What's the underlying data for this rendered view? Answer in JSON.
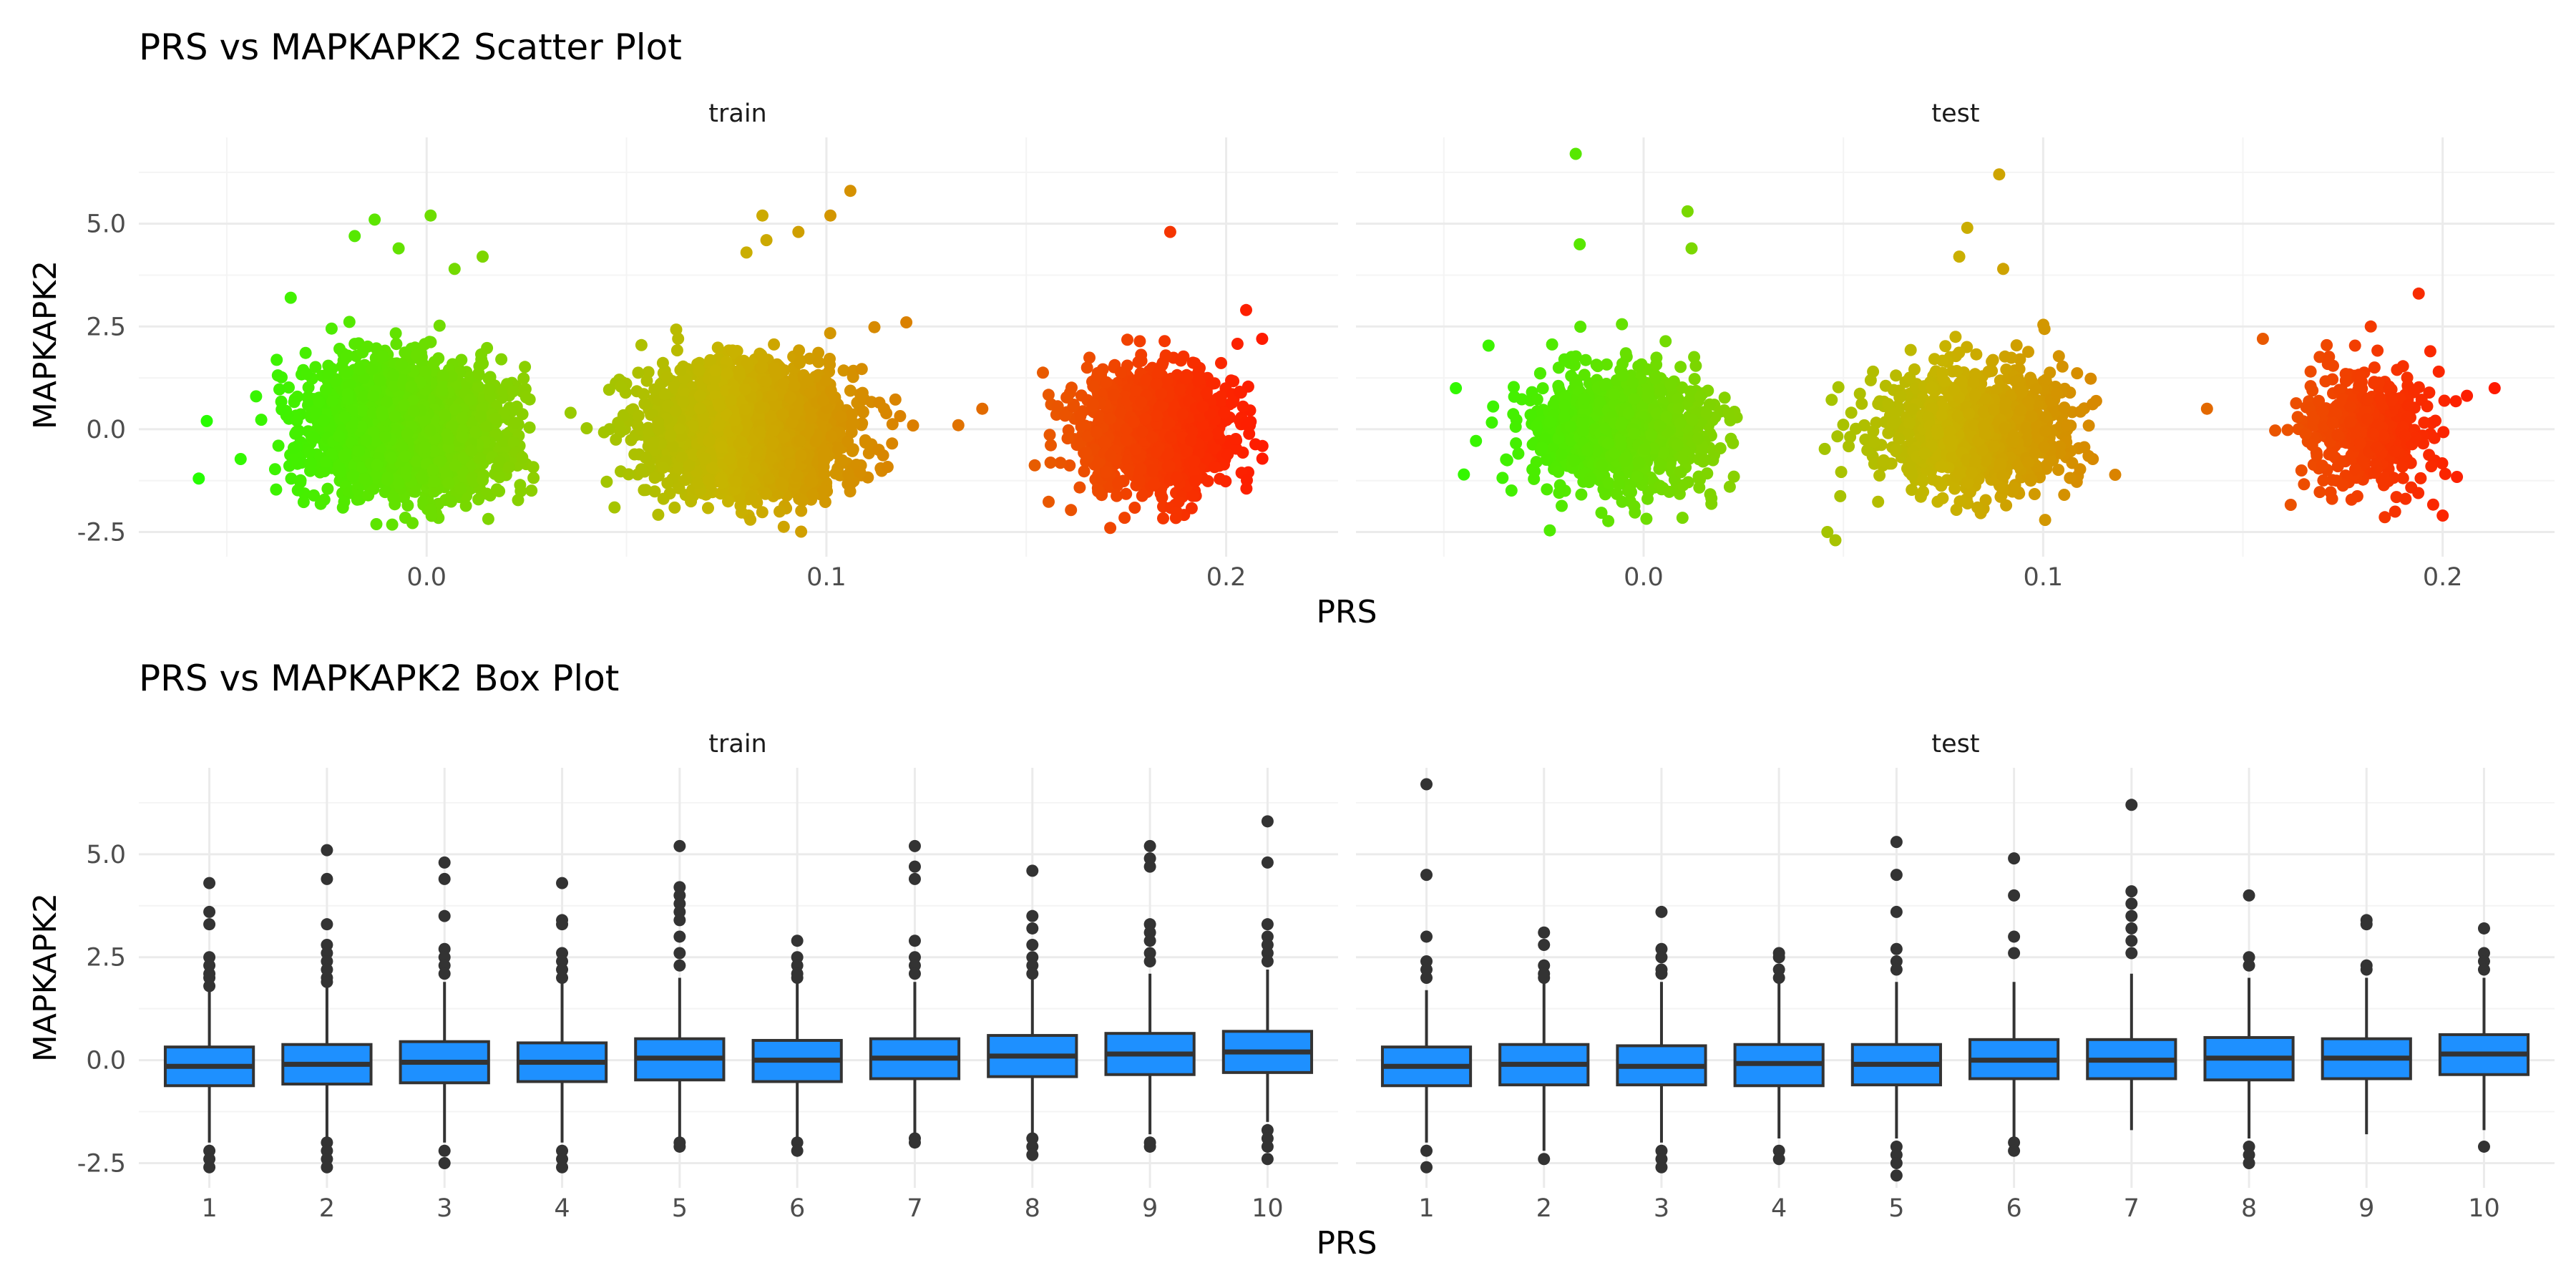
{
  "chart_data": [
    {
      "type": "scatter",
      "title": "PRS vs MAPKAPK2 Scatter Plot",
      "xlabel": "PRS",
      "ylabel": "MAPKAPK2",
      "xlim": [
        -0.072,
        0.228
      ],
      "ylim": [
        -3.1,
        7.1
      ],
      "x_ticks": [
        0.0,
        0.1,
        0.2
      ],
      "x_tick_labels": [
        "0.0",
        "0.1",
        "0.2"
      ],
      "y_ticks": [
        -2.5,
        0.0,
        2.5,
        5.0
      ],
      "y_tick_labels": [
        "-2.5",
        "0.0",
        "2.5",
        "5.0"
      ],
      "grid": true,
      "legend": "none",
      "color_gradient": {
        "low": "#22ff00",
        "mid": "#c8b400",
        "high": "#ff1a00",
        "domain": [
          -0.06,
          0.21
        ]
      },
      "facets": [
        {
          "name": "train",
          "clusters": [
            {
              "center_x": -0.005,
              "sd_x": 0.012,
              "sd_y": 0.75,
              "n": 2600,
              "x_range": [
                -0.058,
                0.028
              ]
            },
            {
              "center_x": 0.081,
              "sd_x": 0.012,
              "sd_y": 0.75,
              "n": 2600,
              "x_range": [
                0.035,
                0.122
              ]
            },
            {
              "center_x": 0.182,
              "sd_x": 0.009,
              "sd_y": 0.75,
              "n": 1300,
              "x_range": [
                0.133,
                0.21
              ]
            }
          ],
          "outliers": [
            {
              "x": -0.013,
              "y": 5.1
            },
            {
              "x": 0.001,
              "y": 5.2
            },
            {
              "x": -0.007,
              "y": 4.4
            },
            {
              "x": 0.014,
              "y": 4.2
            },
            {
              "x": -0.018,
              "y": 4.7
            },
            {
              "x": 0.007,
              "y": 3.9
            },
            {
              "x": -0.034,
              "y": 3.2
            },
            {
              "x": -0.057,
              "y": -1.2
            },
            {
              "x": -0.055,
              "y": 0.2
            },
            {
              "x": 0.084,
              "y": 5.2
            },
            {
              "x": 0.106,
              "y": 5.8
            },
            {
              "x": 0.101,
              "y": 5.2
            },
            {
              "x": 0.085,
              "y": 4.6
            },
            {
              "x": 0.08,
              "y": 4.3
            },
            {
              "x": 0.093,
              "y": 4.8
            },
            {
              "x": 0.036,
              "y": 0.4
            },
            {
              "x": 0.047,
              "y": -1.9
            },
            {
              "x": 0.12,
              "y": 2.6
            },
            {
              "x": 0.186,
              "y": 4.8
            },
            {
              "x": 0.205,
              "y": 2.9
            },
            {
              "x": 0.139,
              "y": 0.5
            },
            {
              "x": 0.133,
              "y": 0.1
            },
            {
              "x": 0.171,
              "y": -2.4
            },
            {
              "x": 0.209,
              "y": 2.2
            }
          ]
        },
        {
          "name": "test",
          "clusters": [
            {
              "center_x": -0.005,
              "sd_x": 0.012,
              "sd_y": 0.75,
              "n": 1000,
              "x_range": [
                -0.05,
                0.03
              ]
            },
            {
              "center_x": 0.083,
              "sd_x": 0.012,
              "sd_y": 0.75,
              "n": 1000,
              "x_range": [
                0.04,
                0.12
              ]
            },
            {
              "center_x": 0.182,
              "sd_x": 0.009,
              "sd_y": 0.75,
              "n": 420,
              "x_range": [
                0.14,
                0.212
              ]
            }
          ],
          "outliers": [
            {
              "x": -0.017,
              "y": 6.7
            },
            {
              "x": 0.011,
              "y": 5.3
            },
            {
              "x": 0.012,
              "y": 4.4
            },
            {
              "x": -0.016,
              "y": 4.5
            },
            {
              "x": -0.047,
              "y": 1.0
            },
            {
              "x": -0.045,
              "y": -1.1
            },
            {
              "x": 0.089,
              "y": 6.2
            },
            {
              "x": 0.081,
              "y": 4.9
            },
            {
              "x": 0.079,
              "y": 4.2
            },
            {
              "x": 0.09,
              "y": 3.9
            },
            {
              "x": 0.046,
              "y": -2.5
            },
            {
              "x": 0.048,
              "y": -2.7
            },
            {
              "x": 0.194,
              "y": 3.3
            },
            {
              "x": 0.213,
              "y": 1.0
            },
            {
              "x": 0.2,
              "y": -2.1
            },
            {
              "x": 0.141,
              "y": 0.5
            },
            {
              "x": 0.155,
              "y": 2.2
            },
            {
              "x": 0.182,
              "y": 2.5
            }
          ]
        }
      ]
    },
    {
      "type": "box",
      "title": "PRS vs MAPKAPK2 Box Plot",
      "xlabel": "PRS",
      "ylabel": "MAPKAPK2",
      "categories": [
        "1",
        "2",
        "3",
        "4",
        "5",
        "6",
        "7",
        "8",
        "9",
        "10"
      ],
      "ylim": [
        -3.1,
        7.1
      ],
      "y_ticks": [
        -2.5,
        0.0,
        2.5,
        5.0
      ],
      "y_tick_labels": [
        "-2.5",
        "0.0",
        "2.5",
        "5.0"
      ],
      "grid": true,
      "fill": "#1e90ff",
      "facets": [
        {
          "name": "train",
          "boxes": [
            {
              "q1": -0.62,
              "median": -0.15,
              "q3": 0.32,
              "lower": -2.0,
              "upper": 1.7,
              "outliers": [
                4.3,
                3.6,
                3.3,
                2.5,
                2.3,
                2.1,
                2.0,
                1.8,
                -2.2,
                -2.4,
                -2.6
              ]
            },
            {
              "q1": -0.58,
              "median": -0.1,
              "q3": 0.38,
              "lower": -2.0,
              "upper": 1.8,
              "outliers": [
                5.1,
                4.4,
                3.3,
                2.8,
                2.6,
                2.4,
                2.2,
                2.0,
                1.9,
                -2.0,
                -2.2,
                -2.4,
                -2.6
              ]
            },
            {
              "q1": -0.55,
              "median": -0.05,
              "q3": 0.45,
              "lower": -2.0,
              "upper": 1.9,
              "outliers": [
                4.8,
                4.4,
                3.5,
                2.7,
                2.5,
                2.3,
                2.1,
                -2.2,
                -2.5
              ]
            },
            {
              "q1": -0.52,
              "median": -0.05,
              "q3": 0.42,
              "lower": -2.0,
              "upper": 1.9,
              "outliers": [
                4.3,
                3.4,
                3.3,
                2.6,
                2.4,
                2.2,
                2.0,
                -2.2,
                -2.4,
                -2.6
              ]
            },
            {
              "q1": -0.48,
              "median": 0.05,
              "q3": 0.52,
              "lower": -1.9,
              "upper": 2.0,
              "outliers": [
                5.2,
                4.2,
                4.0,
                3.8,
                3.6,
                3.4,
                3.0,
                2.6,
                2.3,
                -2.0,
                -2.1
              ]
            },
            {
              "q1": -0.52,
              "median": 0.0,
              "q3": 0.48,
              "lower": -1.9,
              "upper": 1.9,
              "outliers": [
                2.9,
                2.5,
                2.3,
                2.1,
                2.0,
                -2.0,
                -2.2
              ]
            },
            {
              "q1": -0.45,
              "median": 0.05,
              "q3": 0.52,
              "lower": -1.8,
              "upper": 1.9,
              "outliers": [
                5.2,
                4.7,
                4.4,
                2.9,
                2.5,
                2.3,
                2.1,
                -1.9,
                -2.0
              ]
            },
            {
              "q1": -0.4,
              "median": 0.1,
              "q3": 0.6,
              "lower": -1.8,
              "upper": 2.0,
              "outliers": [
                4.6,
                3.5,
                3.2,
                2.8,
                2.5,
                2.3,
                2.1,
                -1.9,
                -2.1,
                -2.3
              ]
            },
            {
              "q1": -0.35,
              "median": 0.15,
              "q3": 0.65,
              "lower": -1.8,
              "upper": 2.1,
              "outliers": [
                5.2,
                4.9,
                4.7,
                3.3,
                3.1,
                2.9,
                2.6,
                2.4,
                -2.0,
                -2.1
              ]
            },
            {
              "q1": -0.3,
              "median": 0.2,
              "q3": 0.7,
              "lower": -1.5,
              "upper": 2.2,
              "outliers": [
                5.8,
                4.8,
                3.3,
                3.0,
                2.8,
                2.6,
                2.4,
                -1.7,
                -1.9,
                -2.1,
                -2.4
              ]
            }
          ]
        },
        {
          "name": "test",
          "boxes": [
            {
              "q1": -0.62,
              "median": -0.15,
              "q3": 0.32,
              "lower": -2.0,
              "upper": 1.7,
              "outliers": [
                6.7,
                4.5,
                3.0,
                2.4,
                2.2,
                2.0,
                -2.2,
                -2.6
              ]
            },
            {
              "q1": -0.6,
              "median": -0.1,
              "q3": 0.38,
              "lower": -2.2,
              "upper": 1.9,
              "outliers": [
                3.1,
                2.8,
                2.3,
                2.1,
                2.0,
                -2.4
              ]
            },
            {
              "q1": -0.6,
              "median": -0.15,
              "q3": 0.35,
              "lower": -2.0,
              "upper": 1.9,
              "outliers": [
                3.6,
                2.7,
                2.5,
                2.2,
                2.1,
                -2.2,
                -2.4,
                -2.6
              ]
            },
            {
              "q1": -0.62,
              "median": -0.08,
              "q3": 0.38,
              "lower": -1.9,
              "upper": 1.9,
              "outliers": [
                2.6,
                2.5,
                2.2,
                2.0,
                -2.2,
                -2.4
              ]
            },
            {
              "q1": -0.6,
              "median": -0.1,
              "q3": 0.38,
              "lower": -1.9,
              "upper": 1.9,
              "outliers": [
                5.3,
                4.5,
                3.6,
                2.7,
                2.4,
                2.2,
                -2.1,
                -2.3,
                -2.5,
                -2.8
              ]
            },
            {
              "q1": -0.45,
              "median": 0.0,
              "q3": 0.5,
              "lower": -1.9,
              "upper": 1.9,
              "outliers": [
                4.9,
                4.0,
                3.0,
                2.6,
                -2.0,
                -2.2
              ]
            },
            {
              "q1": -0.45,
              "median": 0.0,
              "q3": 0.5,
              "lower": -1.7,
              "upper": 2.1,
              "outliers": [
                6.2,
                4.1,
                3.8,
                3.5,
                3.2,
                2.9,
                2.6
              ]
            },
            {
              "q1": -0.48,
              "median": 0.05,
              "q3": 0.55,
              "lower": -1.9,
              "upper": 2.0,
              "outliers": [
                4.0,
                2.5,
                2.3,
                -2.1,
                -2.3,
                -2.5
              ]
            },
            {
              "q1": -0.45,
              "median": 0.05,
              "q3": 0.52,
              "lower": -1.8,
              "upper": 2.0,
              "outliers": [
                3.4,
                3.3,
                2.3,
                2.2
              ]
            },
            {
              "q1": -0.35,
              "median": 0.15,
              "q3": 0.62,
              "lower": -1.7,
              "upper": 2.0,
              "outliers": [
                3.2,
                2.6,
                2.4,
                2.2,
                -2.1
              ]
            }
          ]
        }
      ]
    }
  ]
}
